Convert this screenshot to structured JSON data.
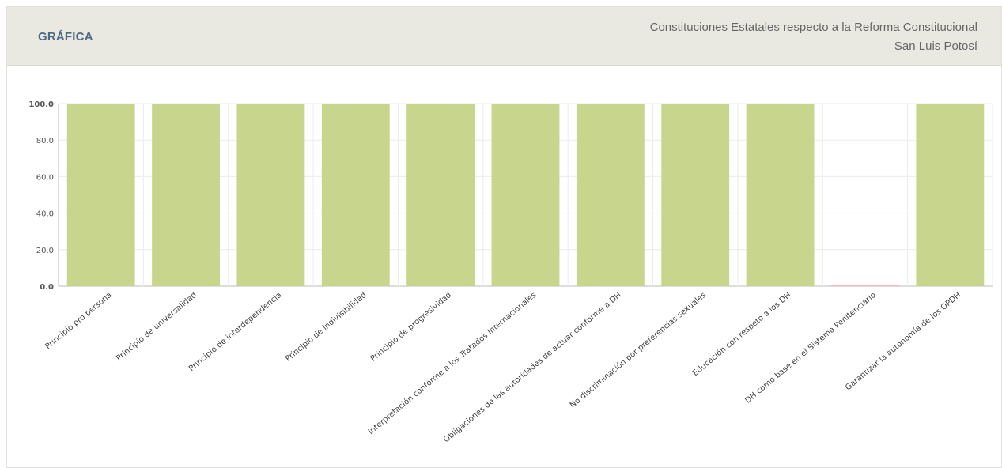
{
  "panel": {
    "label": "GRÁFICA",
    "title_line1": "Constituciones Estatales respecto a la Reforma Constitucional",
    "title_line2": "San Luis Potosí"
  },
  "colors": {
    "bar": "#c8d68d",
    "zero_bar": "#f0b7bf",
    "header_bg": "#e9e9e2",
    "label": "#4d6a85"
  },
  "chart_data": {
    "type": "bar",
    "ylim": [
      0,
      100
    ],
    "yticks": [
      "0.0",
      "20.0",
      "40.0",
      "60.0",
      "80.0",
      "100.0"
    ],
    "grid": true,
    "categories": [
      "Principio pro persona",
      "Principio de universalidad",
      "Principio de interdependencia",
      "Principio de indivisibilidad",
      "Principio de progresividad",
      "Interpretación conforme a los Tratados Internacionales",
      "Obligaciones de las autoridades de actuar conforme a DH",
      "No discriminación por preferencias sexuales",
      "Educación con respeto a los DH",
      "DH como base en el Sistema Penitenciario",
      "Garantizar la autonomía de los OPDH"
    ],
    "values": [
      100,
      100,
      100,
      100,
      100,
      100,
      100,
      100,
      100,
      0,
      100
    ]
  }
}
